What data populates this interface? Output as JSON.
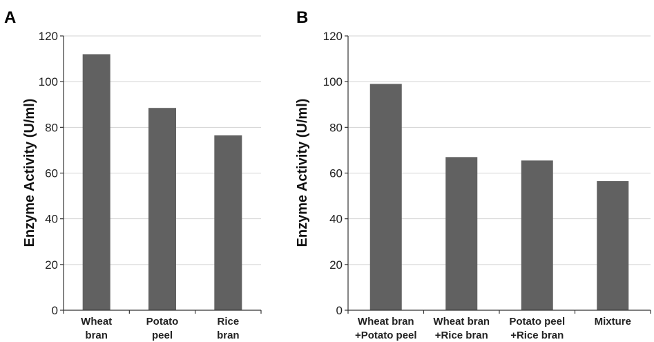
{
  "chart_data": [
    {
      "panel": "A",
      "type": "bar",
      "categories": [
        [
          "Wheat",
          "bran"
        ],
        [
          "Potato",
          "peel"
        ],
        [
          "Rice",
          "bran"
        ]
      ],
      "values": [
        112,
        88.5,
        76.5
      ],
      "ylabel": "Enzyme Activity (U/ml)",
      "ylim": [
        0,
        120
      ],
      "yticks": [
        "0",
        "20",
        "40",
        "60",
        "80",
        "100",
        "120"
      ],
      "bar_color": "#616161",
      "grid": true
    },
    {
      "panel": "B",
      "type": "bar",
      "categories": [
        [
          "Wheat bran",
          "+Potato peel"
        ],
        [
          "Wheat bran",
          "+Rice bran"
        ],
        [
          "Potato  peel",
          "+Rice bran"
        ],
        [
          "Mixture"
        ]
      ],
      "values": [
        99,
        67,
        65.5,
        56.5
      ],
      "ylabel": "Enzyme Activity (U/ml)",
      "ylim": [
        0,
        120
      ],
      "yticks": [
        "0",
        "20",
        "40",
        "60",
        "80",
        "100",
        "120"
      ],
      "bar_color": "#616161",
      "grid": true
    }
  ]
}
